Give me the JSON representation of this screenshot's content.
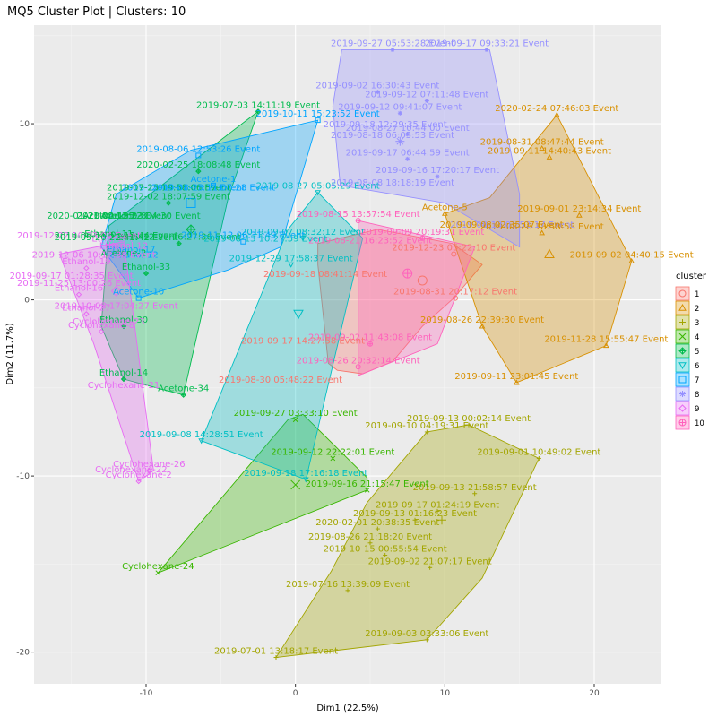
{
  "chart_data": {
    "type": "scatter",
    "title": "MQ5 Cluster Plot | Clusters: 10",
    "xlabel": "Dim1 (22.5%)",
    "ylabel": "Dim2 (11.7%)",
    "xlim": [
      -17.5,
      24.5
    ],
    "ylim": [
      -21.8,
      15.6
    ],
    "xticks": [
      -10,
      0,
      10,
      20
    ],
    "yticks": [
      -20,
      -10,
      0,
      10
    ],
    "grid": true,
    "legend": {
      "title": "cluster",
      "position": "right",
      "entries": [
        "1",
        "2",
        "3",
        "4",
        "5",
        "6",
        "7",
        "8",
        "9",
        "10"
      ]
    },
    "clusters": [
      {
        "id": "1",
        "color": "#F8766D",
        "symbol": "circle",
        "center": [
          8.5,
          1.1
        ],
        "hull": [
          [
            1.5,
            3.2
          ],
          [
            5.5,
            4.0
          ],
          [
            10.5,
            3.2
          ],
          [
            11.5,
            2.6
          ],
          [
            12.5,
            2.0
          ],
          [
            10.6,
            0.1
          ],
          [
            8.5,
            -1.5
          ],
          [
            6.5,
            -3.5
          ],
          [
            4.5,
            -4.2
          ],
          [
            2.8,
            -4.0
          ],
          [
            2.2,
            -3.6
          ],
          [
            1.5,
            2.0
          ]
        ],
        "points": [
          {
            "label": "2019-12-23 05:22:10 Event",
            "x": 10.6,
            "y": 2.6
          },
          {
            "label": "2019-08-31 20:17:12 Event",
            "x": 10.7,
            "y": 0.1
          }
        ]
      },
      {
        "id": "2",
        "color": "#D89000",
        "symbol": "triangle",
        "center": [
          17.0,
          2.6
        ],
        "hull": [
          [
            10.0,
            4.9
          ],
          [
            13.0,
            5.8
          ],
          [
            17.5,
            10.5
          ],
          [
            22.5,
            2.2
          ],
          [
            20.8,
            -2.6
          ],
          [
            14.8,
            -4.7
          ],
          [
            12.5,
            -1.5
          ],
          [
            10.6,
            3.3
          ]
        ],
        "points": [
          {
            "label": "2020-02-24 07:46:03 Event",
            "x": 17.5,
            "y": 10.5
          },
          {
            "label": "2019-08-31 08:47:44 Event",
            "x": 16.5,
            "y": 8.6
          },
          {
            "label": "2019-09-11 14:40:43 Event",
            "x": 17.0,
            "y": 8.1
          },
          {
            "label": "2019-09-01 23:14:34 Event",
            "x": 19.0,
            "y": 4.8
          },
          {
            "label": "2019-09-02 04:40:15 Event",
            "x": 22.5,
            "y": 2.2
          },
          {
            "label": "2019-11-28 15:55:47 Event",
            "x": 20.8,
            "y": -2.6
          },
          {
            "label": "2019-09-11 23:01:45 Event",
            "x": 14.8,
            "y": -4.7
          },
          {
            "label": "2019-08-26 22:39:30 Event",
            "x": 12.5,
            "y": -1.5
          },
          {
            "label": "Acetone-5",
            "x": 10.0,
            "y": 4.9
          },
          {
            "label": "2019-08-28 18:58:58 Event",
            "x": 16.5,
            "y": 3.8
          }
        ]
      },
      {
        "id": "3",
        "color": "#A3A500",
        "symbol": "plus",
        "center": [
          9.8,
          -12.5
        ],
        "hull": [
          [
            -1.3,
            -20.3
          ],
          [
            8.8,
            -19.3
          ],
          [
            12.5,
            -15.8
          ],
          [
            16.3,
            -9.0
          ],
          [
            11.6,
            -7.1
          ],
          [
            8.8,
            -7.5
          ],
          [
            4.8,
            -11.5
          ],
          [
            2.4,
            -15.4
          ]
        ],
        "points": [
          {
            "label": "2019-09-13 00:02:14 Event",
            "x": 11.6,
            "y": -7.1
          },
          {
            "label": "2019-09-10 04:19:31 Event",
            "x": 8.8,
            "y": -7.5
          },
          {
            "label": "2019-09-01 10:49:02 Event",
            "x": 16.3,
            "y": -9.0
          },
          {
            "label": "2019-09-13 21:58:57 Event",
            "x": 12.0,
            "y": -11.0
          },
          {
            "label": "2019-09-17 01:24:19 Event",
            "x": 9.5,
            "y": -12.0
          },
          {
            "label": "2019-09-13 01:16:23 Event",
            "x": 8.0,
            "y": -12.5
          },
          {
            "label": "2020-02-01 20:38:35 Event",
            "x": 5.5,
            "y": -13.0
          },
          {
            "label": "2019-08-26 21:18:20 Event",
            "x": 5.0,
            "y": -13.8
          },
          {
            "label": "2019-10-15 00:55:54 Event",
            "x": 6.0,
            "y": -14.5
          },
          {
            "label": "2019-09-02 21:07:17 Event",
            "x": 9.0,
            "y": -15.2
          },
          {
            "label": "2019-07-16 13:39:09 Event",
            "x": 3.5,
            "y": -16.5
          },
          {
            "label": "2019-09-03 03:33:06 Event",
            "x": 8.8,
            "y": -19.3
          },
          {
            "label": "2019-07-01 13:18:17 Event",
            "x": -1.3,
            "y": -20.3
          }
        ]
      },
      {
        "id": "4",
        "color": "#39B600",
        "symbol": "x",
        "center": [
          0.0,
          -10.5
        ],
        "hull": [
          [
            -9.2,
            -15.5
          ],
          [
            4.8,
            -10.8
          ],
          [
            4.8,
            -10.1
          ],
          [
            0.5,
            -6.5
          ],
          [
            -0.5,
            -6.8
          ]
        ],
        "points": [
          {
            "label": "2019-09-27 03:33:10 Event",
            "x": 0.0,
            "y": -6.8
          },
          {
            "label": "2019-09-12 22:22:01 Event",
            "x": 2.5,
            "y": -9.0
          },
          {
            "label": "2019-09-16 21:15:47 Event",
            "x": 4.8,
            "y": -10.8
          },
          {
            "label": "Cyclohexane-24",
            "x": -9.2,
            "y": -15.5
          }
        ]
      },
      {
        "id": "5",
        "color": "#00BB4E",
        "symbol": "diamond-plus",
        "center": [
          -7.0,
          4.0
        ],
        "hull": [
          [
            -12.5,
            4.2
          ],
          [
            -2.5,
            10.7
          ],
          [
            -4.5,
            5.8
          ],
          [
            -7.5,
            -5.4
          ],
          [
            -11.5,
            -4.5
          ],
          [
            -13.0,
            -1.5
          ]
        ],
        "points": [
          {
            "label": "2019-07-03 14:11:19 Event",
            "x": -2.5,
            "y": 10.7
          },
          {
            "label": "2020-02-25 18:08:48 Event",
            "x": -6.5,
            "y": 7.3
          },
          {
            "label": "2019-12-02 18:07:59 Event",
            "x": -8.5,
            "y": 5.5
          },
          {
            "label": "Acetone-34",
            "x": -7.5,
            "y": -5.4
          },
          {
            "label": "Ethanol-14",
            "x": -11.5,
            "y": -4.5
          },
          {
            "label": "Ethanol-33",
            "x": -10.0,
            "y": 1.5
          },
          {
            "label": "Ethanol-30",
            "x": -11.5,
            "y": -1.5
          },
          {
            "label": "2019-12-27 16:27:36 Event",
            "x": -7.8,
            "y": 3.2
          }
        ]
      },
      {
        "id": "6",
        "color": "#00BFC4",
        "symbol": "triangle-down",
        "center": [
          0.2,
          -0.8
        ],
        "hull": [
          [
            -6.3,
            -8.0
          ],
          [
            0.7,
            -10.2
          ],
          [
            4.5,
            3.5
          ],
          [
            1.5,
            6.1
          ],
          [
            -0.5,
            4.0
          ]
        ],
        "points": [
          {
            "label": "2019-08-27 05:05:29 Event",
            "x": 1.5,
            "y": 6.1
          },
          {
            "label": "2019-09-07 08:32:12 Event",
            "x": 0.5,
            "y": 3.5
          },
          {
            "label": "2019-12-29 17:58:37 Event",
            "x": -0.3,
            "y": 2.0
          },
          {
            "label": "2019-09-08 14:28:51 Event",
            "x": -6.3,
            "y": -8.0
          },
          {
            "label": "2019-09-18 17:16:18 Event",
            "x": 0.7,
            "y": -10.2
          }
        ]
      },
      {
        "id": "7",
        "color": "#00A5FF",
        "symbol": "square",
        "center": [
          -7.0,
          5.5
        ],
        "hull": [
          [
            -13.0,
            3.0
          ],
          [
            -12.0,
            6.0
          ],
          [
            -7.0,
            8.5
          ],
          [
            1.5,
            10.2
          ],
          [
            -1.0,
            3.0
          ],
          [
            -4.5,
            1.7
          ],
          [
            -10.5,
            0.1
          ]
        ],
        "points": [
          {
            "label": "2019-10-11 15:23:52 Event",
            "x": 1.5,
            "y": 10.2
          },
          {
            "label": "2019-08-06 12:53:26 Event",
            "x": -6.5,
            "y": 8.2
          },
          {
            "label": "Acetone-1",
            "x": -5.5,
            "y": 6.5
          },
          {
            "label": "Acetone-10",
            "x": -10.5,
            "y": 0.1
          },
          {
            "label": "2019-11-12 06:31:49 Event",
            "x": -3.5,
            "y": 3.3
          }
        ]
      },
      {
        "id": "8",
        "color": "#9590FF",
        "symbol": "star",
        "center": [
          7.0,
          9.0
        ],
        "hull": [
          [
            3.1,
            14.2
          ],
          [
            13.0,
            14.2
          ],
          [
            15.0,
            6.0
          ],
          [
            15.0,
            3.0
          ],
          [
            10.0,
            5.5
          ],
          [
            3.0,
            6.5
          ],
          [
            2.5,
            11.0
          ]
        ],
        "points": [
          {
            "label": "2019-09-27 05:53:28 Event",
            "x": 6.5,
            "y": 14.2
          },
          {
            "label": "2019-09-17 09:33:21 Event",
            "x": 12.8,
            "y": 14.2
          },
          {
            "label": "2019-09-02 16:30:43 Event",
            "x": 5.5,
            "y": 11.8
          },
          {
            "label": "2019-09-12 07:11:48 Event",
            "x": 8.8,
            "y": 11.3
          },
          {
            "label": "2019-09-12 09:41:07 Event",
            "x": 7.0,
            "y": 10.6
          },
          {
            "label": "2019-08-27 10:44:00 Event",
            "x": 7.5,
            "y": 9.4
          },
          {
            "label": "2019-09-17 06:44:59 Event",
            "x": 7.5,
            "y": 8.0
          },
          {
            "label": "2019-09-16 17:20:17 Event",
            "x": 9.5,
            "y": 7.0
          }
        ]
      },
      {
        "id": "9",
        "color": "#E76BF3",
        "symbol": "diamond",
        "center": [
          -12.0,
          0.5
        ],
        "hull": [
          [
            -15.8,
            2.6
          ],
          [
            -11.5,
            3.3
          ],
          [
            -9.5,
            -9.7
          ],
          [
            -10.5,
            -10.3
          ],
          [
            -13.5,
            -2.5
          ]
        ],
        "points": [
          {
            "label": "Ethanol-7",
            "x": -12.2,
            "y": 3.1
          },
          {
            "label": "Ethanol-19",
            "x": -14.0,
            "y": 1.8
          },
          {
            "label": "Ethanol-16",
            "x": -14.5,
            "y": 0.3
          },
          {
            "label": "Ethanol-27",
            "x": -14.0,
            "y": -0.8
          },
          {
            "label": "Cyclohexane-8",
            "x": -13.0,
            "y": -1.8
          },
          {
            "label": "Cyclohexane-26",
            "x": -9.8,
            "y": -9.7
          },
          {
            "label": "Cyclohexane-2",
            "x": -10.5,
            "y": -10.3
          }
        ]
      },
      {
        "id": "10",
        "color": "#FF62BC",
        "symbol": "circle-plus",
        "center": [
          7.5,
          1.5
        ],
        "hull": [
          [
            4.2,
            4.5
          ],
          [
            12.0,
            3.0
          ],
          [
            9.5,
            -2.5
          ],
          [
            4.2,
            -4.3
          ]
        ],
        "points": [
          {
            "label": "2019-08-15 13:57:54 Event",
            "x": 4.2,
            "y": 4.5
          },
          {
            "label": "2019-09-09 20:19:31 Event",
            "x": 8.5,
            "y": 3.5
          },
          {
            "label": "2019-09-02 11:43:08 Event",
            "x": 5.0,
            "y": -2.5
          },
          {
            "label": "2019-08-26 20:32:14 Event",
            "x": 4.2,
            "y": -3.8
          }
        ]
      }
    ],
    "extra_labels": [
      {
        "text": "2019-09-18 12:29:35 Event",
        "x": 6.0,
        "y": 9.8,
        "cluster": "8"
      },
      {
        "text": "2019-08-18 06:05:53 Event",
        "x": 6.5,
        "y": 9.2,
        "cluster": "8"
      },
      {
        "text": "2019-08-08 18:18:19 Event",
        "x": 6.5,
        "y": 6.5,
        "cluster": "8"
      },
      {
        "text": "2019-08-13 01:52:17 Event",
        "x": 14.5,
        "y": 4.1,
        "cluster": "8"
      },
      {
        "text": "2019-09-08 02:35:07 Event",
        "x": 13.8,
        "y": 4.1,
        "cluster": "2"
      },
      {
        "text": "2019-12-04 01:01:50 Event",
        "x": -7.5,
        "y": 6.2,
        "cluster": "7"
      },
      {
        "text": "2019-07-25 19:58:06 Event",
        "x": -8.5,
        "y": 6.2,
        "cluster": "5"
      },
      {
        "text": "2020-02-19 03:04:30 Event",
        "x": -10.5,
        "y": 4.6,
        "cluster": "5"
      },
      {
        "text": "Acetone-8",
        "x": -11.5,
        "y": 4.6,
        "cluster": "5"
      },
      {
        "text": "2019-08-15 13:13:44 Event",
        "x": -12.0,
        "y": 3.5,
        "cluster": "5"
      },
      {
        "text": "Ethanol-11",
        "x": -12.5,
        "y": 3.6,
        "cluster": "5"
      },
      {
        "text": "Ethanol-17",
        "x": -11.0,
        "y": 2.7,
        "cluster": "7"
      },
      {
        "text": "Ethanol-12",
        "x": -10.8,
        "y": 2.4,
        "cluster": "7"
      },
      {
        "text": "Acetone-2",
        "x": -11.5,
        "y": 2.5,
        "cluster": "5"
      },
      {
        "text": "2019-12-22 10:33:04 Event",
        "x": -14.5,
        "y": 3.5,
        "cluster": "9"
      },
      {
        "text": "2019-09-20 22:41:42 Event",
        "x": -12.0,
        "y": 3.4,
        "cluster": "5"
      },
      {
        "text": "2019-12-06 10:12:38 Event",
        "x": -13.5,
        "y": 2.4,
        "cluster": "9"
      },
      {
        "text": "2019-09-17 01:28:35 Event",
        "x": -15.0,
        "y": 1.2,
        "cluster": "9"
      },
      {
        "text": "2019-11-25 13:00:26 Event",
        "x": -14.5,
        "y": 0.8,
        "cluster": "9"
      },
      {
        "text": "Ethanol-12",
        "x": -11.5,
        "y": 2.9,
        "cluster": "9"
      },
      {
        "text": "2019-08-13 10:27:59 Event",
        "x": -2.0,
        "y": 3.3,
        "cluster": "6"
      },
      {
        "text": "2019-09-18 08:41:14 Event",
        "x": 2.0,
        "y": 1.3,
        "cluster": "1"
      },
      {
        "text": "2019-08-21 16:23:52 Event",
        "x": 5.0,
        "y": 3.2,
        "cluster": "10"
      },
      {
        "text": "2019-09-17 14:27:58 Event",
        "x": 0.5,
        "y": -2.5,
        "cluster": "1"
      },
      {
        "text": "2019-08-30 05:48:22 Event",
        "x": -1.0,
        "y": -4.7,
        "cluster": "1"
      },
      {
        "text": "Cyclohexane-23",
        "x": -12.5,
        "y": -1.4,
        "cluster": "9"
      },
      {
        "text": "Cyclohexane-21",
        "x": -11.5,
        "y": -5.0,
        "cluster": "9"
      },
      {
        "text": "Cyclohexane-22",
        "x": -11.0,
        "y": -9.8,
        "cluster": "9"
      },
      {
        "text": "2019-10-08 17:04:27 Event",
        "x": -12.0,
        "y": -0.5,
        "cluster": "9"
      },
      {
        "text": "Acetone-35",
        "x": -12.5,
        "y": 4.6,
        "cluster": "5"
      },
      {
        "text": "2020-01-21 00:12:22 Event",
        "x": -12.5,
        "y": 4.6,
        "cluster": "5"
      },
      {
        "text": "2019-08-23 11:07:28 Event",
        "x": -5.5,
        "y": 6.2,
        "cluster": "7"
      }
    ]
  }
}
